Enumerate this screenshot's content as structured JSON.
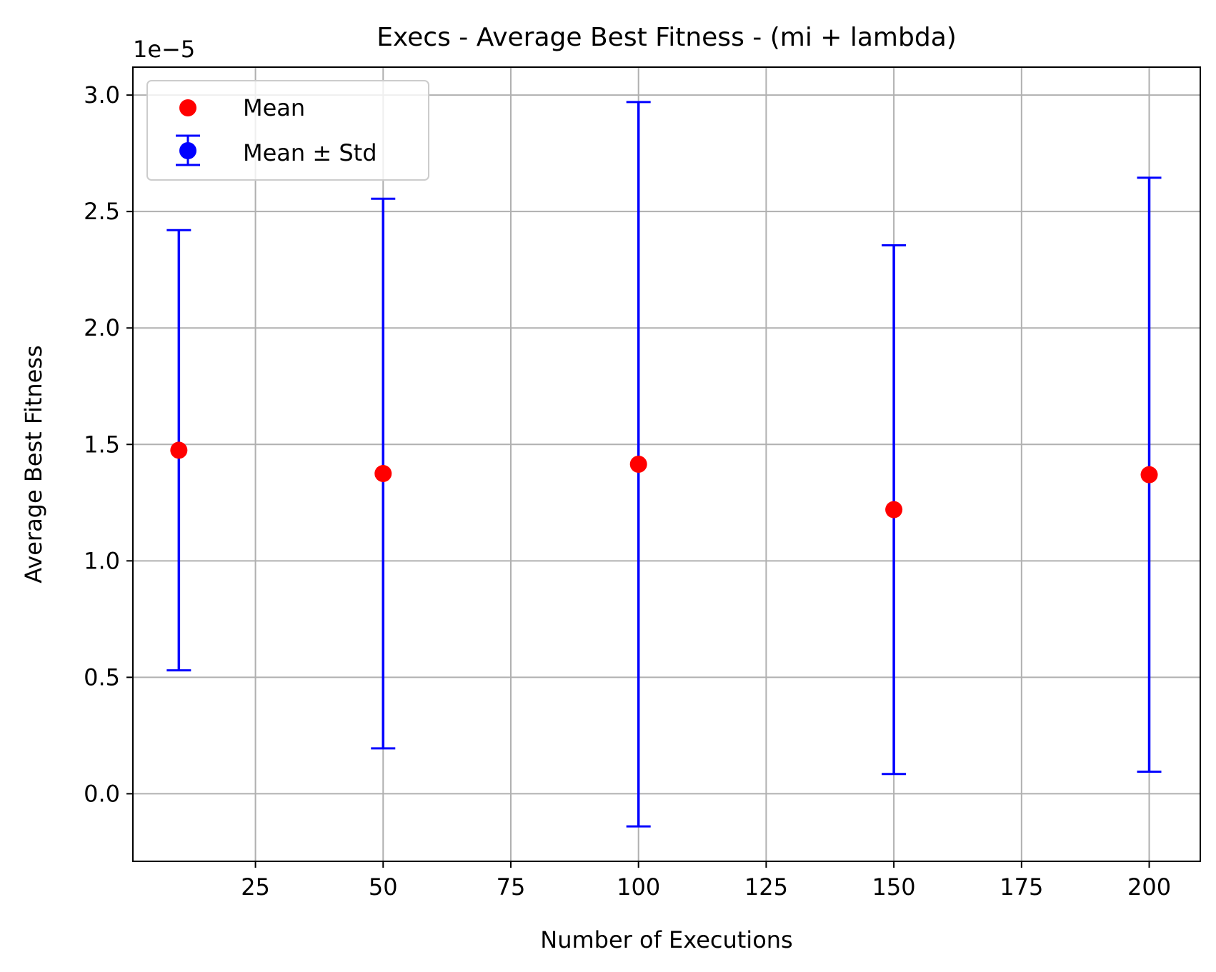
{
  "chart_data": {
    "type": "scatter",
    "title": "Execs - Average Best Fitness - (mi + lambda)",
    "xlabel": "Number of Executions",
    "ylabel": "Average Best Fitness",
    "y_offset_label": "1e−5",
    "xlim": [
      1,
      210
    ],
    "ylim": [
      -0.29,
      3.12
    ],
    "x_ticks": [
      25,
      50,
      75,
      100,
      125,
      150,
      175,
      200
    ],
    "x_tick_labels": [
      "25",
      "50",
      "75",
      "100",
      "125",
      "150",
      "175",
      "200"
    ],
    "y_ticks": [
      0.0,
      0.5,
      1.0,
      1.5,
      2.0,
      2.5,
      3.0
    ],
    "y_tick_labels": [
      "0.0",
      "0.5",
      "1.0",
      "1.5",
      "2.0",
      "2.5",
      "3.0"
    ],
    "grid": true,
    "legend_position": "top-left",
    "legend": [
      {
        "label": "Mean",
        "marker": "dot",
        "color": "#ff0000"
      },
      {
        "label": "Mean ± Std",
        "marker": "errorbar",
        "color": "#0000ff"
      }
    ],
    "series": [
      {
        "name": "Mean",
        "color": "#ff0000",
        "x": [
          10,
          50,
          100,
          150,
          200
        ],
        "y": [
          1.475,
          1.375,
          1.415,
          1.22,
          1.37
        ]
      },
      {
        "name": "Mean ± Std",
        "color": "#0000ff",
        "x": [
          10,
          50,
          100,
          150,
          200
        ],
        "mean": [
          1.475,
          1.375,
          1.415,
          1.22,
          1.37
        ],
        "std": [
          0.945,
          1.18,
          1.555,
          1.135,
          1.275
        ]
      }
    ]
  }
}
